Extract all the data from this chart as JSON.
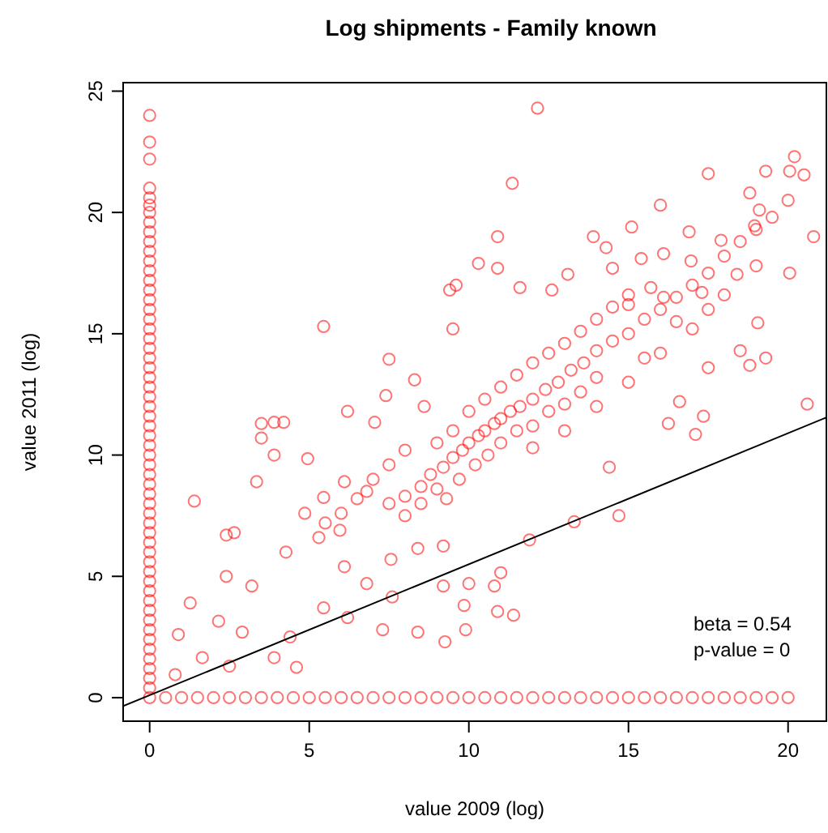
{
  "chart_data": {
    "type": "scatter",
    "title": "Log shipments - Family known",
    "xlabel": "value 2009 (log)",
    "ylabel": "value 2011 (log)",
    "xlim": [
      -0.83,
      21.2
    ],
    "ylim": [
      -0.97,
      25.35
    ],
    "xticks": [
      0,
      5,
      10,
      15,
      20
    ],
    "yticks": [
      0,
      5,
      10,
      15,
      20,
      25
    ],
    "annotations": [
      "beta = 0.54",
      "p-value = 0"
    ],
    "series": [
      {
        "color": "#ff0000",
        "marker": "circle",
        "x": [
          0,
          0,
          0,
          0,
          0,
          0,
          0,
          0,
          0,
          0,
          0,
          0,
          0,
          0,
          0,
          0,
          0,
          0,
          0,
          0,
          0,
          0,
          0,
          0,
          0,
          0,
          0,
          0,
          0,
          0,
          0,
          0,
          0,
          0,
          0,
          0,
          0,
          0,
          0,
          0,
          0,
          0,
          0,
          0,
          0,
          0,
          0,
          0,
          0,
          0,
          0,
          0,
          0,
          0,
          0,
          0,
          0
        ],
        "values": [
          24.0,
          22.9,
          22.2,
          21.0,
          20.6,
          20.3,
          20.0,
          19.6,
          19.2,
          18.8,
          18.4,
          18.0,
          17.6,
          17.2,
          16.8,
          16.4,
          16.0,
          15.6,
          15.2,
          14.8,
          14.4,
          14.0,
          13.6,
          13.2,
          12.8,
          12.4,
          12.0,
          11.6,
          11.2,
          10.8,
          10.4,
          10.0,
          9.6,
          9.2,
          8.8,
          8.4,
          8.0,
          7.6,
          7.2,
          6.8,
          6.4,
          6.0,
          5.6,
          5.2,
          4.8,
          4.4,
          4.0,
          3.6,
          3.2,
          2.8,
          2.4,
          2.0,
          1.6,
          1.2,
          0.8,
          0.4,
          0
        ]
      },
      {
        "color": "#ff0000",
        "marker": "circle",
        "x": [
          0.5,
          1,
          1.5,
          2,
          2.5,
          3,
          3.5,
          4,
          4.5,
          5,
          5.5,
          6,
          6.5,
          7,
          7.5,
          8,
          8.5,
          9,
          9.5,
          10,
          10.5,
          11,
          11.5,
          12,
          12.5,
          13,
          13.5,
          14,
          14.5,
          15,
          15.5,
          16,
          16.5,
          17,
          17.5,
          18,
          18.5,
          19,
          19.5,
          20
        ],
        "values": [
          0,
          0,
          0,
          0,
          0,
          0,
          0,
          0,
          0,
          0,
          0,
          0,
          0,
          0,
          0,
          0,
          0,
          0,
          0,
          0,
          0,
          0,
          0,
          0,
          0,
          0,
          0,
          0,
          0,
          0,
          0,
          0,
          0,
          0,
          0,
          0,
          0,
          0,
          0,
          0
        ]
      },
      {
        "color": "#ff0000",
        "marker": "circle",
        "x": [
          12.15,
          11.36,
          20.2,
          19.3,
          17.5,
          20.05,
          20.5,
          16.0,
          15.1,
          20.8,
          20.05,
          18.8,
          19.1,
          18.95,
          17.9,
          16.9,
          18.4,
          19.05,
          18.5,
          19.3,
          18.8,
          17.5,
          20.6,
          17.35,
          16.25,
          17.1,
          16.6,
          14.7,
          14.4,
          13.3,
          11.9,
          10.9,
          11.4,
          9.9,
          9.25,
          8.4,
          7.3,
          6.2,
          4.6,
          3.9,
          2.5,
          1.65,
          0.8,
          0.9,
          1.4,
          5.45,
          3.5,
          3.9,
          4.2,
          3.5,
          3.9,
          3.35,
          4.95,
          2.4,
          2.65,
          2.4,
          3.2,
          1.27,
          2.16,
          2.9,
          4.4,
          5.45,
          6.1,
          6.8,
          7.6,
          9.2,
          10.0,
          10.8,
          9.85,
          11.0,
          9.2,
          8.4,
          7.56,
          5.96,
          5.3,
          4.27,
          4.86,
          5.45,
          6.1,
          6.8,
          6.2,
          7.05,
          7.5,
          8.3,
          7.4,
          8.6,
          9.4,
          9.6,
          10.3,
          9.5,
          10.9,
          10.9,
          11.6,
          12.6,
          13.1,
          13.9,
          14.3,
          14.5,
          15.4,
          16.1,
          16.96,
          17.5,
          17.3,
          16.1,
          15.7,
          15.0,
          7.5,
          8,
          8.5,
          8.8,
          9.2,
          9.5,
          9.8,
          10,
          10.3,
          10.5,
          10.8,
          11,
          11.3,
          11.6,
          12,
          12.4,
          12.8,
          13.2,
          13.6,
          14,
          14.5,
          15,
          15.5,
          16,
          16.5,
          17,
          17.5,
          18,
          18.5,
          19,
          19.5,
          20,
          8,
          8.5,
          9,
          9.3,
          9.7,
          10.2,
          10.6,
          11,
          11.5,
          12,
          12.5,
          13,
          13.5,
          14,
          9,
          9.5,
          10,
          10.5,
          11,
          11.5,
          12,
          12.5,
          13,
          13.5,
          14,
          14.5,
          15,
          7,
          7.5,
          8,
          6.5,
          6,
          5.5,
          12,
          13,
          14,
          15,
          16,
          17,
          18,
          19,
          15.5,
          16.5
        ],
        "values": [
          24.3,
          21.2,
          22.3,
          21.7,
          21.6,
          21.7,
          21.55,
          20.3,
          19.4,
          19.0,
          17.5,
          20.8,
          20.1,
          19.45,
          18.85,
          19.2,
          17.45,
          15.45,
          14.3,
          14.0,
          13.7,
          13.6,
          12.1,
          11.6,
          11.3,
          10.85,
          12.2,
          7.5,
          9.5,
          7.25,
          6.5,
          3.55,
          3.4,
          2.8,
          2.3,
          2.7,
          2.8,
          3.3,
          1.25,
          1.65,
          1.3,
          1.65,
          0.95,
          2.6,
          8.1,
          15.3,
          11.3,
          11.35,
          11.35,
          10.7,
          10.0,
          8.9,
          9.85,
          6.7,
          6.8,
          5.0,
          4.6,
          3.9,
          3.15,
          2.7,
          2.5,
          3.7,
          5.4,
          4.7,
          4.15,
          4.6,
          4.7,
          4.6,
          3.8,
          5.15,
          6.25,
          6.15,
          5.7,
          6.9,
          6.6,
          6.0,
          7.6,
          8.25,
          8.9,
          8.5,
          11.8,
          11.35,
          13.95,
          13.1,
          12.45,
          12.0,
          16.8,
          17.0,
          17.9,
          15.2,
          19.0,
          17.7,
          16.9,
          16.8,
          17.45,
          19.0,
          18.55,
          17.7,
          18.1,
          18.3,
          18.0,
          16.0,
          16.7,
          16.5,
          16.9,
          16.2,
          8.0,
          8.3,
          8.7,
          9.2,
          9.5,
          9.9,
          10.2,
          10.5,
          10.8,
          11,
          11.3,
          11.5,
          11.8,
          12,
          12.3,
          12.7,
          13,
          13.5,
          13.8,
          14.3,
          14.7,
          15,
          15.6,
          16,
          16.5,
          17,
          17.5,
          18.2,
          18.8,
          19.3,
          19.8,
          20.5,
          7.5,
          8,
          8.6,
          8.2,
          9,
          9.6,
          10,
          10.5,
          11,
          11.2,
          11.8,
          12.1,
          12.6,
          13.2,
          10.5,
          11,
          11.8,
          12.3,
          12.8,
          13.3,
          13.8,
          14.2,
          14.6,
          15.1,
          15.6,
          16.1,
          16.6,
          9,
          9.6,
          10.2,
          8.2,
          7.6,
          7.2,
          10.3,
          11,
          12,
          13,
          14.2,
          15.2,
          16.6,
          17.8,
          14,
          15.5
        ]
      },
      {
        "type": "line",
        "marker": "none",
        "color": "#000000",
        "x": [
          -0.83,
          21.2
        ],
        "values": [
          -0.35,
          11.55
        ]
      }
    ]
  }
}
